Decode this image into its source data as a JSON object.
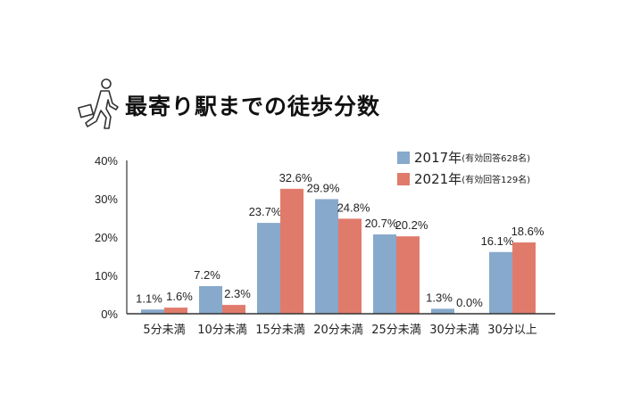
{
  "title": "最寄り駅までの徒歩分数",
  "icon": "walking-businessman-icon",
  "chart_data": {
    "type": "bar",
    "title": "最寄り駅までの徒歩分数",
    "categories": [
      "5分未満",
      "10分未満",
      "15分未満",
      "20分未満",
      "25分未満",
      "30分未満",
      "30分以上"
    ],
    "series": [
      {
        "name": "2017年",
        "note": "(有効回答628名)",
        "color": "#87a9cb",
        "values": [
          1.1,
          7.2,
          23.7,
          29.9,
          20.7,
          1.3,
          16.1
        ]
      },
      {
        "name": "2021年",
        "note": "(有効回答129名)",
        "color": "#e07b6c",
        "values": [
          1.6,
          2.3,
          32.6,
          24.8,
          20.2,
          0.0,
          18.6
        ]
      }
    ],
    "data_labels": [
      [
        "1.1%",
        "7.2%",
        "23.7%",
        "29.9%",
        "20.7%",
        "1.3%",
        "16.1%"
      ],
      [
        "1.6%",
        "2.3%",
        "32.6%",
        "24.8%",
        "20.2%",
        "0.0%",
        "18.6%"
      ]
    ],
    "yticks": [
      "0%",
      "10%",
      "20%",
      "30%",
      "40%"
    ],
    "ylim": [
      0,
      40
    ],
    "grid": false,
    "legend_position": "top-right",
    "xlabel": "",
    "ylabel": ""
  }
}
